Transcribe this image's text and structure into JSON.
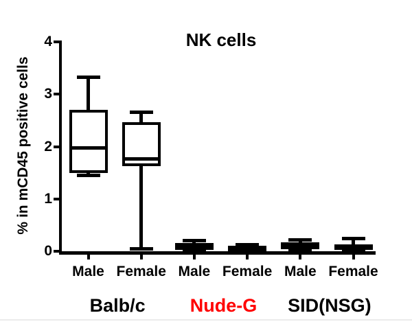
{
  "chart_data": {
    "type": "box",
    "title": "NK cells",
    "ylabel": "% in mCD45 positive cells",
    "xlabel": "",
    "ylim": [
      0,
      4
    ],
    "yticks": [
      0,
      1,
      2,
      3,
      4
    ],
    "grid": false,
    "legend": "none",
    "box_outline_color": "#000000",
    "box_fill_color": "#ffffff",
    "groups": [
      {
        "label": "Balb/c",
        "label_color": "#000000",
        "categories": [
          {
            "label": "Male",
            "min": 1.45,
            "q1": 1.5,
            "median": 1.98,
            "q3": 2.7,
            "max": 3.32
          },
          {
            "label": "Female",
            "min": 0.05,
            "q1": 1.62,
            "median": 1.77,
            "q3": 2.47,
            "max": 2.65
          }
        ]
      },
      {
        "label": "Nude-G",
        "label_color": "#ff0000",
        "categories": [
          {
            "label": "Male",
            "min": 0.0,
            "q1": 0.03,
            "median": 0.1,
            "q3": 0.16,
            "max": 0.2
          },
          {
            "label": "Female",
            "min": 0.0,
            "q1": 0.02,
            "median": 0.06,
            "q3": 0.1,
            "max": 0.13
          }
        ]
      },
      {
        "label": "SID(NSG)",
        "label_color": "#000000",
        "categories": [
          {
            "label": "Male",
            "min": 0.02,
            "q1": 0.04,
            "median": 0.11,
            "q3": 0.17,
            "max": 0.22
          },
          {
            "label": "Female",
            "min": 0.02,
            "q1": 0.04,
            "median": 0.08,
            "q3": 0.13,
            "max": 0.24
          }
        ]
      }
    ]
  }
}
